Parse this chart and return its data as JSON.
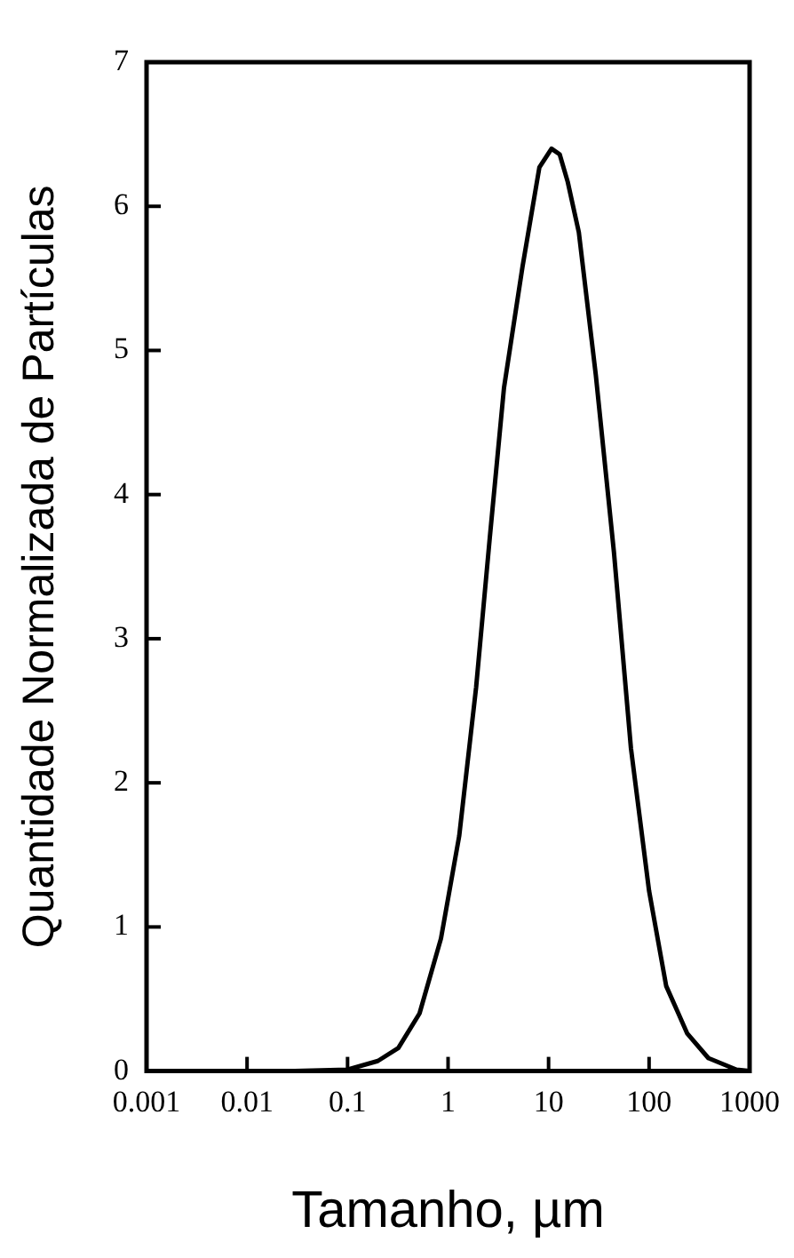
{
  "chart_data": {
    "type": "line",
    "xlabel": "Tamanho, µm",
    "ylabel": "Quantidade Normalizada de Partículas",
    "log": "x",
    "x": [
      0.03,
      0.1,
      0.2,
      0.32,
      0.52,
      0.85,
      1.29,
      1.9,
      2.6,
      3.6,
      5.5,
      8.1,
      10.7,
      12.9,
      15.5,
      20,
      29.5,
      44.7,
      66,
      100,
      148,
      240,
      389,
      741,
      1000
    ],
    "series": [
      {
        "color": "#000000",
        "values": [
          0,
          0.01,
          0.07,
          0.16,
          0.4,
          0.92,
          1.63,
          2.66,
          3.7,
          4.74,
          5.58,
          6.27,
          6.4,
          6.36,
          6.17,
          5.82,
          4.83,
          3.6,
          2.24,
          1.25,
          0.59,
          0.26,
          0.09,
          0.01,
          0
        ]
      }
    ],
    "xlim": [
      0.001,
      1000
    ],
    "xticks": [
      0.001,
      0.01,
      0.1,
      1,
      10,
      100,
      1000
    ],
    "ylim": [
      0,
      7
    ],
    "yticks": [
      0,
      1,
      2,
      3,
      4,
      5,
      6,
      7
    ],
    "grid": false,
    "legend": false,
    "marker": "none",
    "line_style": "solid"
  }
}
